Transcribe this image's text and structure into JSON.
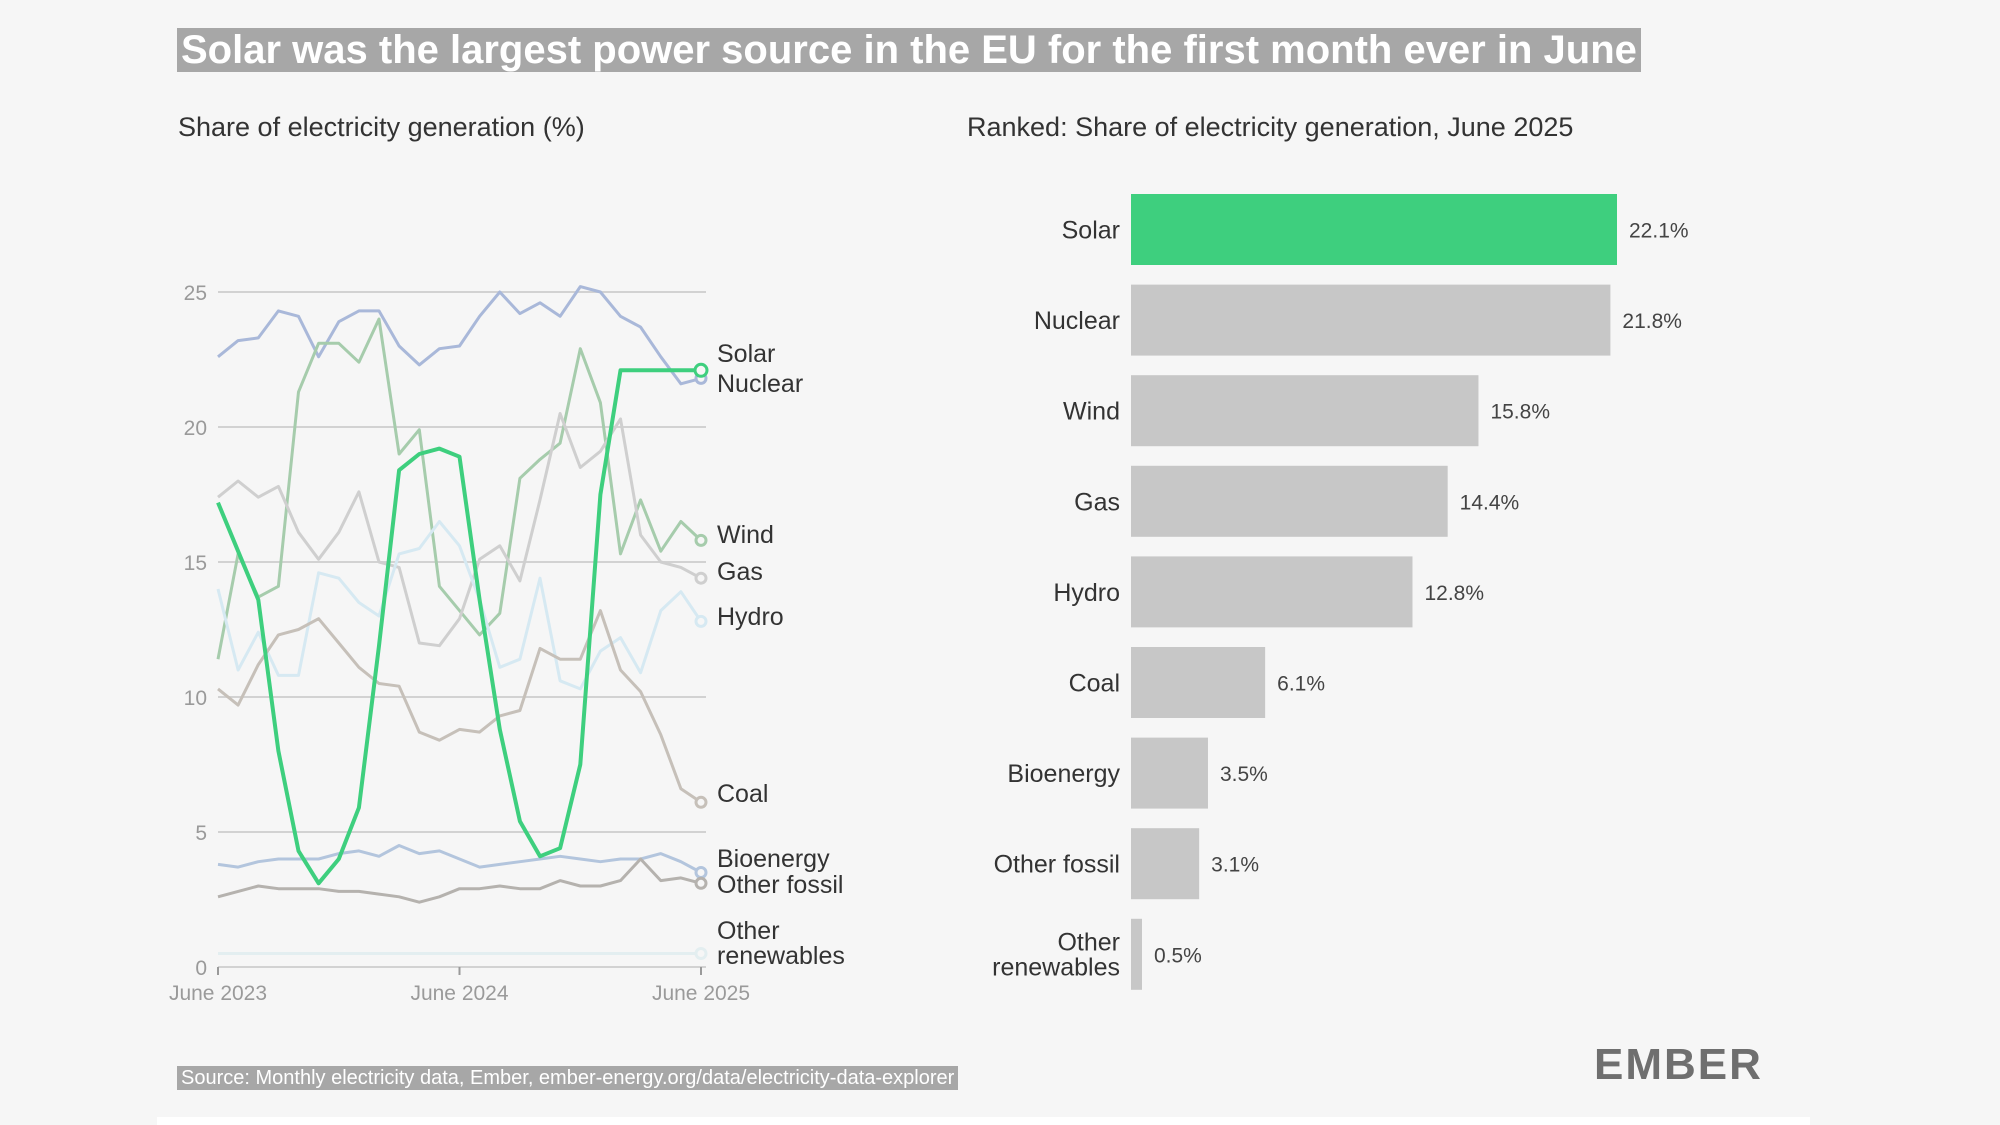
{
  "title": "Solar was the largest power source in the EU for the first month ever in June",
  "source": "Source: Monthly electricity data, Ember, ember-energy.org/data/electricity-data-explorer",
  "logo": "EMBER",
  "chart_data": [
    {
      "type": "line",
      "title": "Share of electricity generation (%)",
      "ylim": [
        0,
        25
      ],
      "yticks": [
        0,
        5,
        10,
        15,
        20,
        25
      ],
      "grid": true,
      "x": [
        "2023-06",
        "2023-07",
        "2023-08",
        "2023-09",
        "2023-10",
        "2023-11",
        "2023-12",
        "2024-01",
        "2024-02",
        "2024-03",
        "2024-04",
        "2024-05",
        "2024-06",
        "2024-07",
        "2024-08",
        "2024-09",
        "2024-10",
        "2024-11",
        "2024-12",
        "2025-01",
        "2025-02",
        "2025-03",
        "2025-04",
        "2025-05",
        "2025-06"
      ],
      "xtick_labels": [
        {
          "x": "2023-06",
          "label": "June 2023"
        },
        {
          "x": "2024-06",
          "label": "June 2024"
        },
        {
          "x": "2025-06",
          "label": "June 2025"
        }
      ],
      "series": [
        {
          "name": "Solar",
          "color": "#3ecf7e",
          "highlight": true,
          "values": [
            17.2,
            15.4,
            13.6,
            8.0,
            4.3,
            3.1,
            4.0,
            5.9,
            11.9,
            18.4,
            19.0,
            19.2,
            18.9,
            13.6,
            8.8,
            5.4,
            4.1,
            4.4,
            7.5,
            17.5,
            22.1,
            22.1,
            22.1,
            22.1,
            22.1
          ]
        },
        {
          "name": "Nuclear",
          "color": "#a9b8d9",
          "values": [
            22.6,
            23.2,
            23.3,
            24.3,
            24.1,
            22.6,
            23.9,
            24.3,
            24.3,
            23.0,
            22.3,
            22.9,
            23.0,
            24.1,
            25.0,
            24.2,
            24.6,
            24.1,
            25.2,
            25.0,
            24.1,
            23.7,
            22.6,
            21.6,
            21.8
          ]
        },
        {
          "name": "Wind",
          "color": "#a6ccac",
          "values": [
            11.4,
            15.3,
            13.7,
            14.1,
            21.3,
            23.1,
            23.1,
            22.4,
            24.0,
            19.0,
            19.9,
            14.1,
            13.2,
            12.3,
            13.1,
            18.1,
            18.8,
            19.4,
            22.9,
            20.9,
            15.3,
            17.3,
            15.4,
            16.5,
            15.8
          ]
        },
        {
          "name": "Gas",
          "color": "#cfcfcf",
          "values": [
            17.4,
            18.0,
            17.4,
            17.8,
            16.1,
            15.1,
            16.1,
            17.6,
            15.0,
            14.8,
            12.0,
            11.9,
            12.9,
            15.1,
            15.6,
            14.3,
            17.3,
            20.5,
            18.5,
            19.1,
            20.3,
            16.0,
            15.0,
            14.8,
            14.4
          ]
        },
        {
          "name": "Hydro",
          "color": "#d6e9f2",
          "values": [
            14.0,
            11.0,
            12.4,
            10.8,
            10.8,
            14.6,
            14.4,
            13.5,
            13.0,
            15.3,
            15.5,
            16.5,
            15.6,
            13.6,
            11.1,
            11.4,
            14.4,
            10.6,
            10.3,
            11.7,
            12.2,
            10.9,
            13.2,
            13.9,
            12.8
          ]
        },
        {
          "name": "Coal",
          "color": "#c6c0b9",
          "values": [
            10.3,
            9.7,
            11.2,
            12.3,
            12.5,
            12.9,
            12.0,
            11.1,
            10.5,
            10.4,
            8.7,
            8.4,
            8.8,
            8.7,
            9.3,
            9.5,
            11.8,
            11.4,
            11.4,
            13.2,
            11.0,
            10.2,
            8.6,
            6.6,
            6.1
          ]
        },
        {
          "name": "Bioenergy",
          "color": "#b3c5dd",
          "values": [
            3.8,
            3.7,
            3.9,
            4.0,
            4.0,
            4.0,
            4.2,
            4.3,
            4.1,
            4.5,
            4.2,
            4.3,
            4.0,
            3.7,
            3.8,
            3.9,
            4.0,
            4.1,
            4.0,
            3.9,
            4.0,
            4.0,
            4.2,
            3.9,
            3.5
          ]
        },
        {
          "name": "Other fossil",
          "color": "#b5b2ae",
          "values": [
            2.6,
            2.8,
            3.0,
            2.9,
            2.9,
            2.9,
            2.8,
            2.8,
            2.7,
            2.6,
            2.4,
            2.6,
            2.9,
            2.9,
            3.0,
            2.9,
            2.9,
            3.2,
            3.0,
            3.0,
            3.2,
            4.0,
            3.2,
            3.3,
            3.1
          ]
        },
        {
          "name": "Other renewables",
          "color": "#e3eef0",
          "values": [
            0.5,
            0.5,
            0.5,
            0.5,
            0.5,
            0.5,
            0.5,
            0.5,
            0.5,
            0.5,
            0.5,
            0.5,
            0.5,
            0.5,
            0.5,
            0.5,
            0.5,
            0.5,
            0.5,
            0.5,
            0.5,
            0.5,
            0.5,
            0.5,
            0.5
          ]
        }
      ],
      "end_labels": [
        {
          "series": "Solar",
          "lines": [
            "Solar"
          ]
        },
        {
          "series": "Nuclear",
          "lines": [
            "Nuclear"
          ]
        },
        {
          "series": "Wind",
          "lines": [
            "Wind"
          ]
        },
        {
          "series": "Gas",
          "lines": [
            "Gas"
          ]
        },
        {
          "series": "Hydro",
          "lines": [
            "Hydro"
          ]
        },
        {
          "series": "Coal",
          "lines": [
            "Coal"
          ]
        },
        {
          "series": "Bioenergy",
          "lines": [
            "Bioenergy"
          ]
        },
        {
          "series": "Other fossil",
          "lines": [
            "Other fossil"
          ]
        },
        {
          "series": "Other renewables",
          "lines": [
            "Other",
            "renewables"
          ]
        }
      ]
    },
    {
      "type": "bar",
      "orientation": "horizontal",
      "title": "Ranked: Share of electricity generation, June 2025",
      "categories": [
        {
          "lines": [
            "Solar"
          ]
        },
        {
          "lines": [
            "Nuclear"
          ]
        },
        {
          "lines": [
            "Wind"
          ]
        },
        {
          "lines": [
            "Gas"
          ]
        },
        {
          "lines": [
            "Hydro"
          ]
        },
        {
          "lines": [
            "Coal"
          ]
        },
        {
          "lines": [
            "Bioenergy"
          ]
        },
        {
          "lines": [
            "Other fossil"
          ]
        },
        {
          "lines": [
            "Other",
            "renewables"
          ]
        }
      ],
      "values": [
        22.1,
        21.8,
        15.8,
        14.4,
        12.8,
        6.1,
        3.5,
        3.1,
        0.5
      ],
      "value_labels": [
        "22.1%",
        "21.8%",
        "15.8%",
        "14.4%",
        "12.8%",
        "6.1%",
        "3.5%",
        "3.1%",
        "0.5%"
      ],
      "highlight_index": 0,
      "highlight_color": "#3ecf7e",
      "bar_color": "#c7c7c7"
    }
  ]
}
